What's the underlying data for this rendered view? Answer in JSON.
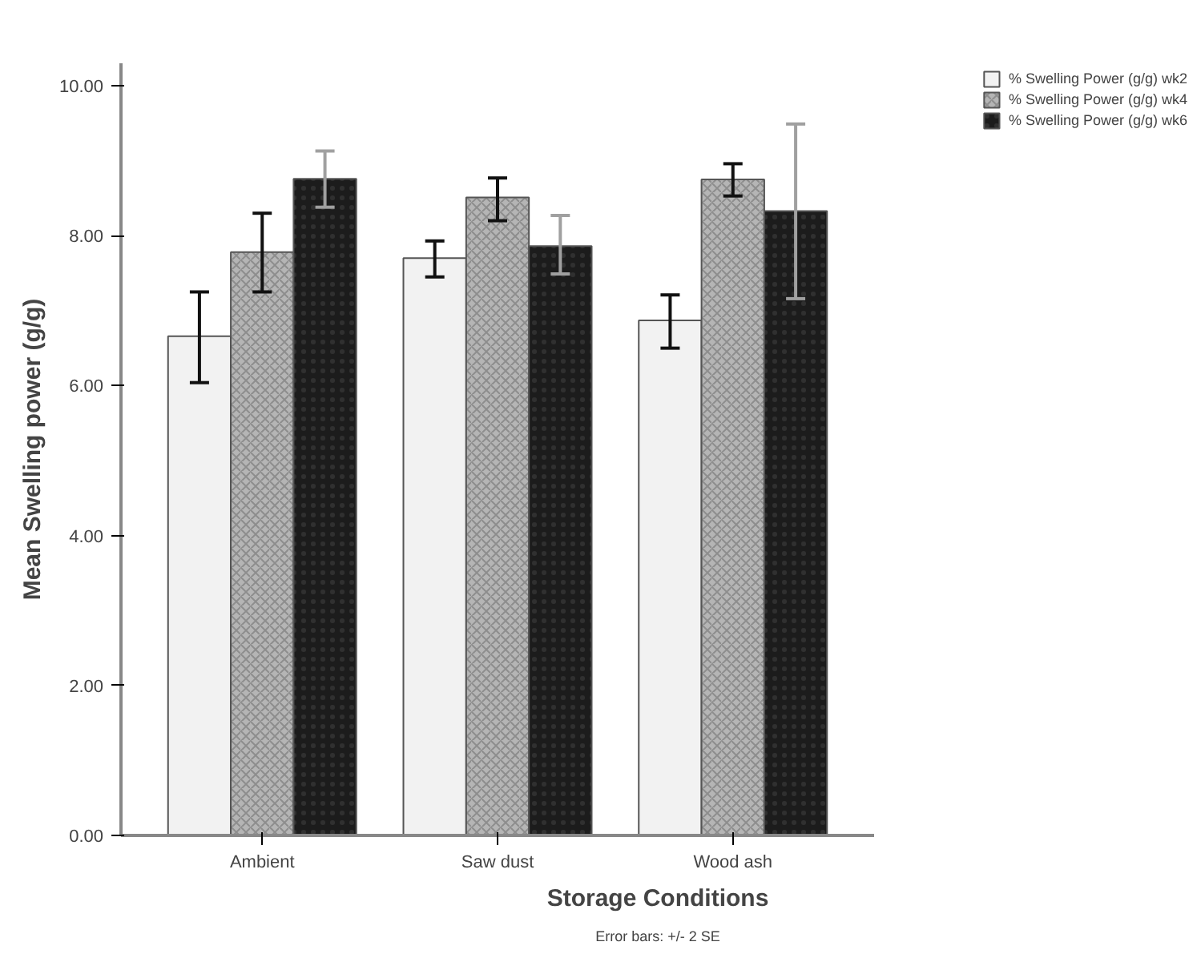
{
  "chart_data": {
    "type": "bar",
    "xlabel": "Storage Conditions",
    "ylabel": "Mean Swelling power (g/g)",
    "categories": [
      "Ambient",
      "Saw dust",
      "Wood ash"
    ],
    "series": [
      {
        "name": "% Swelling Power (g/g) wk2",
        "color": "#f2f2f2",
        "values": [
          6.66,
          7.7,
          6.87
        ],
        "errors": [
          [
            6.04,
            7.25
          ],
          [
            7.45,
            7.93
          ],
          [
            6.5,
            7.21
          ]
        ]
      },
      {
        "name": "% Swelling Power (g/g) wk4",
        "color": "#b5b5b5",
        "values": [
          7.78,
          8.51,
          8.75
        ],
        "errors": [
          [
            7.25,
            8.3
          ],
          [
            8.2,
            8.77
          ],
          [
            8.53,
            8.96
          ]
        ]
      },
      {
        "name": "% Swelling Power (g/g) wk6",
        "color": "#1c1c1c",
        "values": [
          8.76,
          7.86,
          8.33
        ],
        "errors": [
          [
            8.38,
            9.13
          ],
          [
            7.49,
            8.27
          ],
          [
            7.16,
            9.49
          ]
        ]
      }
    ],
    "ylim": [
      0,
      10.3
    ],
    "yticks": [
      {
        "value": 0,
        "label": "0.00"
      },
      {
        "value": 2,
        "label": "2.00"
      },
      {
        "value": 4,
        "label": "4.00"
      },
      {
        "value": 6,
        "label": "6.00"
      },
      {
        "value": 8,
        "label": "8.00"
      },
      {
        "value": 10,
        "label": "10.00"
      }
    ],
    "grid": false,
    "legend": "top right",
    "annotations": [
      "Error bars: +/- 2 SE"
    ]
  }
}
